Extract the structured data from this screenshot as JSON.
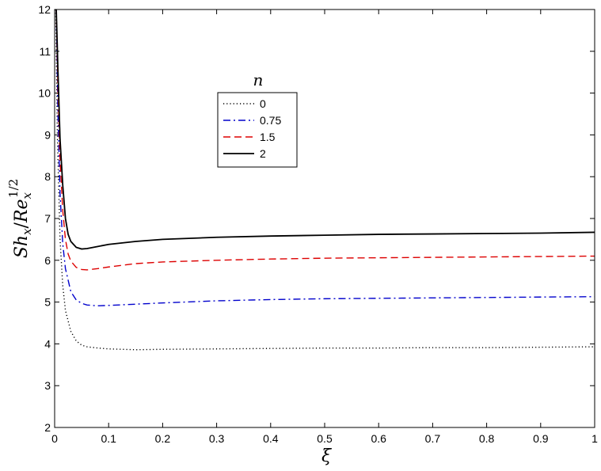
{
  "chart_data": {
    "type": "line",
    "xlabel": "ξ",
    "ylabel": {
      "base": "Sh",
      "base_sub": "x",
      "slash": "/",
      "denom": "Re",
      "denom_sub": "x",
      "denom_sup": "1/2"
    },
    "xlim": [
      0,
      1
    ],
    "ylim": [
      2,
      12
    ],
    "xticks": [
      0,
      0.1,
      0.2,
      0.3,
      0.4,
      0.5,
      0.6,
      0.7,
      0.8,
      0.9,
      1
    ],
    "xtick_labels": [
      "0",
      "0.1",
      "0.2",
      "0.3",
      "0.4",
      "0.5",
      "0.6",
      "0.7",
      "0.8",
      "0.9",
      "1"
    ],
    "yticks": [
      2,
      3,
      4,
      5,
      6,
      7,
      8,
      9,
      10,
      11,
      12
    ],
    "ytick_labels": [
      "2",
      "3",
      "4",
      "5",
      "6",
      "7",
      "8",
      "9",
      "10",
      "11",
      "12"
    ],
    "grid": false,
    "legend": {
      "title": "n",
      "placement": "upper-center"
    },
    "series": [
      {
        "name": "0",
        "color": "#000000",
        "style": "dotted",
        "x": [
          0.002,
          0.005,
          0.01,
          0.015,
          0.02,
          0.03,
          0.04,
          0.05,
          0.06,
          0.08,
          0.1,
          0.15,
          0.2,
          0.3,
          0.4,
          0.5,
          0.6,
          0.7,
          0.8,
          0.9,
          1.0
        ],
        "y": [
          12,
          9.0,
          6.5,
          5.4,
          4.8,
          4.3,
          4.07,
          3.97,
          3.93,
          3.9,
          3.88,
          3.86,
          3.87,
          3.88,
          3.89,
          3.9,
          3.9,
          3.91,
          3.91,
          3.92,
          3.93
        ]
      },
      {
        "name": "0.75",
        "color": "#0000cc",
        "style": "dashdot",
        "x": [
          0.003,
          0.006,
          0.01,
          0.015,
          0.02,
          0.03,
          0.04,
          0.05,
          0.06,
          0.08,
          0.1,
          0.15,
          0.2,
          0.3,
          0.4,
          0.5,
          0.6,
          0.7,
          0.8,
          0.9,
          1.0
        ],
        "y": [
          12,
          9.6,
          7.6,
          6.4,
          5.8,
          5.25,
          5.05,
          4.97,
          4.93,
          4.91,
          4.92,
          4.95,
          4.98,
          5.03,
          5.06,
          5.08,
          5.09,
          5.1,
          5.11,
          5.12,
          5.13
        ]
      },
      {
        "name": "1.5",
        "color": "#dd0000",
        "style": "dashed",
        "x": [
          0.003,
          0.006,
          0.01,
          0.015,
          0.02,
          0.025,
          0.03,
          0.04,
          0.05,
          0.06,
          0.08,
          0.1,
          0.15,
          0.2,
          0.3,
          0.4,
          0.5,
          0.6,
          0.7,
          0.8,
          0.9,
          1.0
        ],
        "y": [
          12,
          10.2,
          8.4,
          7.2,
          6.5,
          6.15,
          5.98,
          5.83,
          5.78,
          5.77,
          5.8,
          5.84,
          5.92,
          5.96,
          6.0,
          6.03,
          6.05,
          6.06,
          6.07,
          6.08,
          6.09,
          6.1
        ]
      },
      {
        "name": "2",
        "color": "#000000",
        "style": "solid",
        "x": [
          0.003,
          0.006,
          0.01,
          0.015,
          0.02,
          0.025,
          0.03,
          0.04,
          0.05,
          0.06,
          0.08,
          0.1,
          0.15,
          0.2,
          0.3,
          0.4,
          0.5,
          0.6,
          0.7,
          0.8,
          0.9,
          1.0
        ],
        "y": [
          12,
          10.6,
          8.9,
          7.8,
          7.0,
          6.62,
          6.45,
          6.31,
          6.27,
          6.28,
          6.33,
          6.38,
          6.45,
          6.5,
          6.55,
          6.58,
          6.6,
          6.62,
          6.63,
          6.64,
          6.65,
          6.67
        ]
      }
    ]
  }
}
